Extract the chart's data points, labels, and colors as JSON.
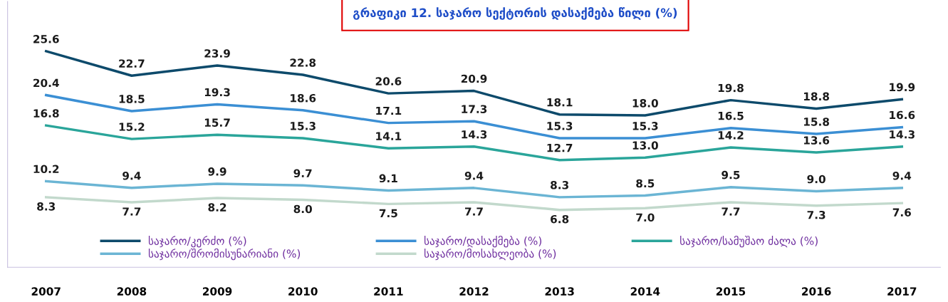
{
  "chart_data": {
    "type": "line",
    "title": "გრაფიკი 12. საჯარო სექტორის დასაქმება წილი (%)",
    "categories": [
      "2007",
      "2008",
      "2009",
      "2010",
      "2011",
      "2012",
      "2013",
      "2014",
      "2015",
      "2016",
      "2017"
    ],
    "series": [
      {
        "name": "საჯარო/კერძო (%)",
        "color": "#0d4a6b",
        "values": [
          25.6,
          22.7,
          23.9,
          22.8,
          20.6,
          20.9,
          18.1,
          18.0,
          19.8,
          18.8,
          19.9
        ],
        "value_labels": [
          "25.6",
          "22.7",
          "23.9",
          "22.8",
          "20.6",
          "20.9",
          "18.1",
          "18.0",
          "19.8",
          "18.8",
          "19.9"
        ]
      },
      {
        "name": "საჯარო/დასაქმება (%)",
        "color": "#3b8fd4",
        "values": [
          20.4,
          18.5,
          19.3,
          18.6,
          17.1,
          17.3,
          15.3,
          15.3,
          16.5,
          15.8,
          16.6
        ],
        "value_labels": [
          "20.4",
          "18.5",
          "19.3",
          "18.6",
          "17.1",
          "17.3",
          "15.3",
          "15.3",
          "16.5",
          "15.8",
          "16.6"
        ]
      },
      {
        "name": "საჯარო/სამუშაო ძალა (%)",
        "color": "#2aa59a",
        "values": [
          16.8,
          15.2,
          15.7,
          15.3,
          14.1,
          14.3,
          12.7,
          13.0,
          14.2,
          13.6,
          14.3
        ],
        "value_labels": [
          "16.8",
          "15.2",
          "15.7",
          "15.3",
          "14.1",
          "14.3",
          "12.7",
          "13.0",
          "14.2",
          "13.6",
          "14.3"
        ]
      },
      {
        "name": "საჯარო/შრომისუნარიანი (%)",
        "color": "#6bb5d4",
        "values": [
          10.2,
          9.4,
          9.9,
          9.7,
          9.1,
          9.4,
          8.3,
          8.5,
          9.5,
          9.0,
          9.4
        ],
        "value_labels": [
          "10.2",
          "9.4",
          "9.9",
          "9.7",
          "9.1",
          "9.4",
          "8.3",
          "8.5",
          "9.5",
          "9.0",
          "9.4"
        ]
      },
      {
        "name": "საჯარო/მოსახლეობა (%)",
        "color": "#c2d9cc",
        "values": [
          8.3,
          7.7,
          8.2,
          8.0,
          7.5,
          7.7,
          6.8,
          7.0,
          7.7,
          7.3,
          7.6
        ],
        "value_labels": [
          "8.3",
          "7.7",
          "8.2",
          "8.0",
          "7.5",
          "7.7",
          "6.8",
          "7.0",
          "7.7",
          "7.3",
          "7.6"
        ]
      }
    ],
    "legend": "bottom",
    "grid": false,
    "marker": "none",
    "line_style": "solid"
  }
}
